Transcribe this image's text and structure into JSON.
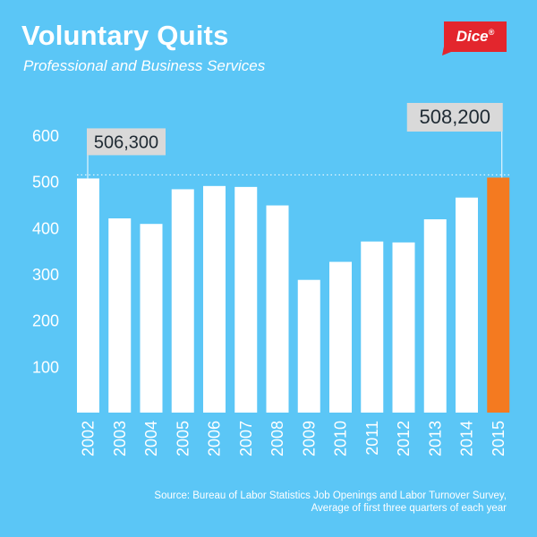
{
  "header": {
    "title": "Voluntary Quits",
    "subtitle": "Professional and Business Services",
    "logo_text": "Dice",
    "logo_mark": "®"
  },
  "colors": {
    "background": "#5bc6f6",
    "bar": "#ffffff",
    "highlight_bar": "#f47a20",
    "callout_box": "#d9d9d9",
    "logo": "#e3262d"
  },
  "chart_data": {
    "type": "bar",
    "title": "Voluntary Quits",
    "subtitle": "Professional and Business Services",
    "xlabel": "",
    "ylabel": "",
    "ylim": [
      0,
      600
    ],
    "yticks": [
      100,
      200,
      300,
      400,
      500,
      600
    ],
    "grid": false,
    "categories": [
      "2002",
      "2003",
      "2004",
      "2005",
      "2006",
      "2007",
      "2008",
      "2009",
      "2010",
      "2011",
      "2012",
      "2013",
      "2014",
      "2015"
    ],
    "values": [
      506.3,
      420,
      408,
      483,
      490,
      488,
      448,
      287,
      326,
      370,
      368,
      418,
      465,
      508.2
    ],
    "highlight_category": "2015",
    "callouts": [
      {
        "category": "2002",
        "label": "506,300"
      },
      {
        "category": "2015",
        "label": "508,200"
      }
    ]
  },
  "footer": {
    "source_line1": "Source: Bureau of Labor Statistics Job Openings and Labor Turnover Survey,",
    "source_line2": "Average of first three quarters of each year"
  }
}
